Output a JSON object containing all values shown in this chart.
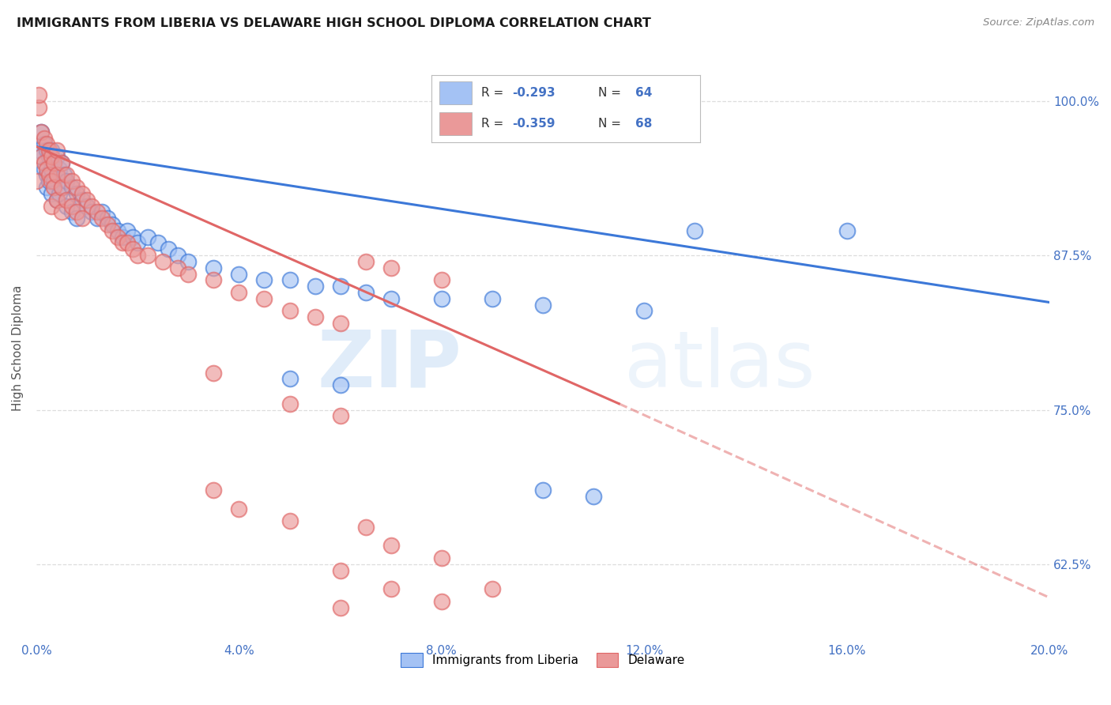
{
  "title": "IMMIGRANTS FROM LIBERIA VS DELAWARE HIGH SCHOOL DIPLOMA CORRELATION CHART",
  "source": "Source: ZipAtlas.com",
  "ylabel": "High School Diploma",
  "ytick_labels": [
    "100.0%",
    "87.5%",
    "75.0%",
    "62.5%"
  ],
  "ytick_values": [
    1.0,
    0.875,
    0.75,
    0.625
  ],
  "xlim": [
    0.0,
    0.2
  ],
  "ylim": [
    0.565,
    1.035
  ],
  "blue_color": "#a4c2f4",
  "pink_color": "#ea9999",
  "blue_line_color": "#3c78d8",
  "pink_line_color": "#e06666",
  "blue_scatter": [
    [
      0.0005,
      0.96
    ],
    [
      0.001,
      0.975
    ],
    [
      0.001,
      0.955
    ],
    [
      0.0015,
      0.965
    ],
    [
      0.0015,
      0.945
    ],
    [
      0.002,
      0.96
    ],
    [
      0.002,
      0.94
    ],
    [
      0.002,
      0.93
    ],
    [
      0.0025,
      0.955
    ],
    [
      0.0025,
      0.935
    ],
    [
      0.003,
      0.96
    ],
    [
      0.003,
      0.945
    ],
    [
      0.003,
      0.925
    ],
    [
      0.0035,
      0.95
    ],
    [
      0.0035,
      0.935
    ],
    [
      0.004,
      0.955
    ],
    [
      0.004,
      0.94
    ],
    [
      0.004,
      0.92
    ],
    [
      0.0045,
      0.945
    ],
    [
      0.0045,
      0.925
    ],
    [
      0.005,
      0.95
    ],
    [
      0.005,
      0.93
    ],
    [
      0.0055,
      0.94
    ],
    [
      0.006,
      0.935
    ],
    [
      0.006,
      0.915
    ],
    [
      0.007,
      0.93
    ],
    [
      0.007,
      0.91
    ],
    [
      0.008,
      0.925
    ],
    [
      0.008,
      0.905
    ],
    [
      0.009,
      0.92
    ],
    [
      0.01,
      0.915
    ],
    [
      0.011,
      0.91
    ],
    [
      0.012,
      0.905
    ],
    [
      0.013,
      0.91
    ],
    [
      0.014,
      0.905
    ],
    [
      0.015,
      0.9
    ],
    [
      0.016,
      0.895
    ],
    [
      0.017,
      0.89
    ],
    [
      0.018,
      0.895
    ],
    [
      0.019,
      0.89
    ],
    [
      0.02,
      0.885
    ],
    [
      0.022,
      0.89
    ],
    [
      0.024,
      0.885
    ],
    [
      0.026,
      0.88
    ],
    [
      0.028,
      0.875
    ],
    [
      0.03,
      0.87
    ],
    [
      0.035,
      0.865
    ],
    [
      0.04,
      0.86
    ],
    [
      0.045,
      0.855
    ],
    [
      0.05,
      0.855
    ],
    [
      0.055,
      0.85
    ],
    [
      0.06,
      0.85
    ],
    [
      0.065,
      0.845
    ],
    [
      0.07,
      0.84
    ],
    [
      0.08,
      0.84
    ],
    [
      0.09,
      0.84
    ],
    [
      0.1,
      0.835
    ],
    [
      0.12,
      0.83
    ],
    [
      0.13,
      0.895
    ],
    [
      0.16,
      0.895
    ],
    [
      0.05,
      0.775
    ],
    [
      0.06,
      0.77
    ],
    [
      0.1,
      0.685
    ],
    [
      0.11,
      0.68
    ]
  ],
  "pink_scatter": [
    [
      0.0,
      0.935
    ],
    [
      0.0005,
      0.995
    ],
    [
      0.001,
      0.975
    ],
    [
      0.001,
      0.955
    ],
    [
      0.0015,
      0.97
    ],
    [
      0.0015,
      0.95
    ],
    [
      0.002,
      0.965
    ],
    [
      0.002,
      0.945
    ],
    [
      0.0025,
      0.96
    ],
    [
      0.0025,
      0.94
    ],
    [
      0.003,
      0.955
    ],
    [
      0.003,
      0.935
    ],
    [
      0.003,
      0.915
    ],
    [
      0.0035,
      0.95
    ],
    [
      0.0035,
      0.93
    ],
    [
      0.004,
      0.96
    ],
    [
      0.004,
      0.94
    ],
    [
      0.004,
      0.92
    ],
    [
      0.005,
      0.95
    ],
    [
      0.005,
      0.93
    ],
    [
      0.005,
      0.91
    ],
    [
      0.006,
      0.94
    ],
    [
      0.006,
      0.92
    ],
    [
      0.007,
      0.935
    ],
    [
      0.007,
      0.915
    ],
    [
      0.008,
      0.93
    ],
    [
      0.008,
      0.91
    ],
    [
      0.009,
      0.925
    ],
    [
      0.009,
      0.905
    ],
    [
      0.01,
      0.92
    ],
    [
      0.011,
      0.915
    ],
    [
      0.012,
      0.91
    ],
    [
      0.013,
      0.905
    ],
    [
      0.014,
      0.9
    ],
    [
      0.015,
      0.895
    ],
    [
      0.016,
      0.89
    ],
    [
      0.017,
      0.885
    ],
    [
      0.018,
      0.885
    ],
    [
      0.019,
      0.88
    ],
    [
      0.02,
      0.875
    ],
    [
      0.022,
      0.875
    ],
    [
      0.025,
      0.87
    ],
    [
      0.028,
      0.865
    ],
    [
      0.03,
      0.86
    ],
    [
      0.035,
      0.855
    ],
    [
      0.04,
      0.845
    ],
    [
      0.045,
      0.84
    ],
    [
      0.05,
      0.83
    ],
    [
      0.055,
      0.825
    ],
    [
      0.06,
      0.82
    ],
    [
      0.065,
      0.87
    ],
    [
      0.07,
      0.865
    ],
    [
      0.08,
      0.855
    ],
    [
      0.035,
      0.78
    ],
    [
      0.05,
      0.755
    ],
    [
      0.06,
      0.745
    ],
    [
      0.065,
      0.655
    ],
    [
      0.07,
      0.64
    ],
    [
      0.08,
      0.63
    ],
    [
      0.035,
      0.685
    ],
    [
      0.04,
      0.67
    ],
    [
      0.05,
      0.66
    ],
    [
      0.06,
      0.62
    ],
    [
      0.07,
      0.605
    ],
    [
      0.08,
      0.595
    ],
    [
      0.06,
      0.59
    ],
    [
      0.09,
      0.605
    ],
    [
      0.0005,
      1.005
    ]
  ],
  "blue_trendline_solid": [
    [
      0.0,
      0.963
    ],
    [
      0.2,
      0.837
    ]
  ],
  "pink_trendline_solid": [
    [
      0.0,
      0.963
    ],
    [
      0.115,
      0.755
    ]
  ],
  "pink_trendline_dashed": [
    [
      0.115,
      0.755
    ],
    [
      0.2,
      0.598
    ]
  ],
  "watermark_zip": "ZIP",
  "watermark_atlas": "atlas",
  "background_color": "#ffffff",
  "grid_color": "#dddddd",
  "legend_r1": "-0.293",
  "legend_n1": "64",
  "legend_r2": "-0.359",
  "legend_n2": "68",
  "legend_label1": "Immigrants from Liberia",
  "legend_label2": "Delaware"
}
